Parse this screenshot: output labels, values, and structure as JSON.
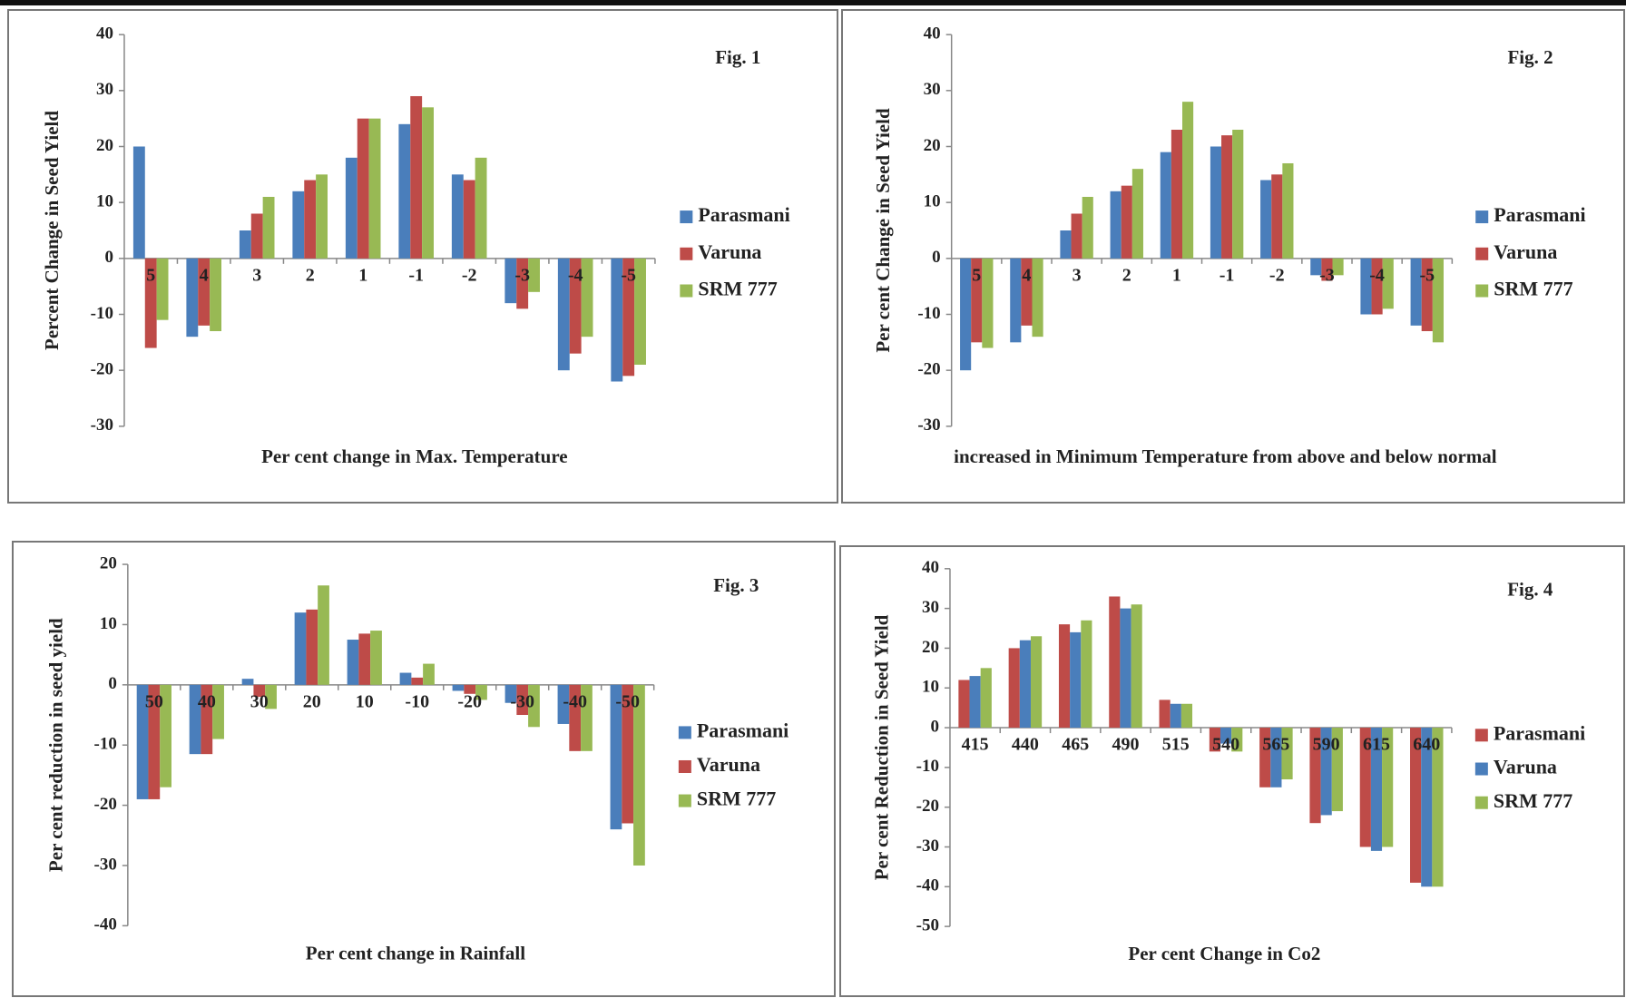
{
  "chart_data": [
    {
      "type": "bar",
      "title": "Fig. 1",
      "x_label": "Per cent change in Max. Temperature",
      "y_label": "Percent Change in Seed Yield",
      "categories": [
        "5",
        "4",
        "3",
        "2",
        "1",
        "-1",
        "-2",
        "-3",
        "-4",
        "-5"
      ],
      "series": [
        {
          "name": "Parasmani",
          "color": "#4a7ebb",
          "values": [
            20,
            -14,
            5,
            12,
            18,
            24,
            15,
            -8,
            -20,
            -22
          ]
        },
        {
          "name": "Varuna",
          "color": "#be4b48",
          "values": [
            -16,
            -12,
            8,
            14,
            25,
            29,
            14,
            -9,
            -17,
            -21
          ]
        },
        {
          "name": "SRM 777",
          "color": "#98b954",
          "values": [
            -11,
            -13,
            11,
            15,
            25,
            27,
            18,
            -6,
            -14,
            -19
          ]
        }
      ],
      "ylim": [
        -30,
        40
      ],
      "yticks": [
        -30,
        -20,
        -10,
        0,
        10,
        20,
        30,
        40
      ]
    },
    {
      "type": "bar",
      "title": "Fig. 2",
      "x_label": "increased in Minimum Temperature from above and below normal",
      "y_label": "Per cent Change in Seed Yield",
      "categories": [
        "5",
        "4",
        "3",
        "2",
        "1",
        "-1",
        "-2",
        "-3",
        "-4",
        "-5"
      ],
      "series": [
        {
          "name": "Parasmani",
          "color": "#4a7ebb",
          "values": [
            -20,
            -15,
            5,
            12,
            19,
            20,
            14,
            -3,
            -10,
            -12
          ]
        },
        {
          "name": "Varuna",
          "color": "#be4b48",
          "values": [
            -15,
            -12,
            8,
            13,
            23,
            22,
            15,
            -4,
            -10,
            -13
          ]
        },
        {
          "name": "SRM 777",
          "color": "#98b954",
          "values": [
            -16,
            -14,
            11,
            16,
            28,
            23,
            17,
            -3,
            -9,
            -15
          ]
        }
      ],
      "ylim": [
        -30,
        40
      ],
      "yticks": [
        -30,
        -20,
        -10,
        0,
        10,
        20,
        30,
        40
      ]
    },
    {
      "type": "bar",
      "title": "Fig. 3",
      "x_label": "Per cent change in Rainfall",
      "y_label": "Per cent reduction in seed yield",
      "categories": [
        "50",
        "40",
        "30",
        "20",
        "10",
        "-10",
        "-20",
        "-30",
        "-40",
        "-50"
      ],
      "series": [
        {
          "name": "Parasmani",
          "color": "#4a7ebb",
          "values": [
            -19,
            -11.5,
            1,
            12,
            7.5,
            2,
            -1,
            -3,
            -6.5,
            -24
          ]
        },
        {
          "name": "Varuna",
          "color": "#be4b48",
          "values": [
            -19,
            -11.5,
            -2,
            12.5,
            8.5,
            1.2,
            -1.5,
            -5,
            -11,
            -23
          ]
        },
        {
          "name": "SRM 777",
          "color": "#98b954",
          "values": [
            -17,
            -9,
            -4,
            16.5,
            9,
            3.5,
            -2.5,
            -7,
            -11,
            -30
          ]
        }
      ],
      "ylim": [
        -40,
        20
      ],
      "yticks": [
        -40,
        -30,
        -20,
        -10,
        0,
        10,
        20
      ]
    },
    {
      "type": "bar",
      "title": "Fig. 4",
      "x_label": "Per cent Change in Co2",
      "y_label": "Per cent Reduction in Seed Yield",
      "categories": [
        "415",
        "440",
        "465",
        "490",
        "515",
        "540",
        "565",
        "590",
        "615",
        "640"
      ],
      "series": [
        {
          "name": "Parasmani",
          "color": "#be4b48",
          "values": [
            12,
            20,
            26,
            33,
            7,
            -6,
            -15,
            -24,
            -30,
            -39
          ]
        },
        {
          "name": "Varuna",
          "color": "#4a7ebb",
          "values": [
            13,
            22,
            24,
            30,
            6,
            -4,
            -15,
            -22,
            -31,
            -40
          ]
        },
        {
          "name": "SRM 777",
          "color": "#98b954",
          "values": [
            15,
            23,
            27,
            31,
            6,
            -6,
            -13,
            -21,
            -30,
            -40
          ]
        }
      ],
      "ylim": [
        -50,
        40
      ],
      "yticks": [
        -50,
        -40,
        -30,
        -20,
        -10,
        0,
        10,
        20,
        30,
        40
      ]
    }
  ]
}
